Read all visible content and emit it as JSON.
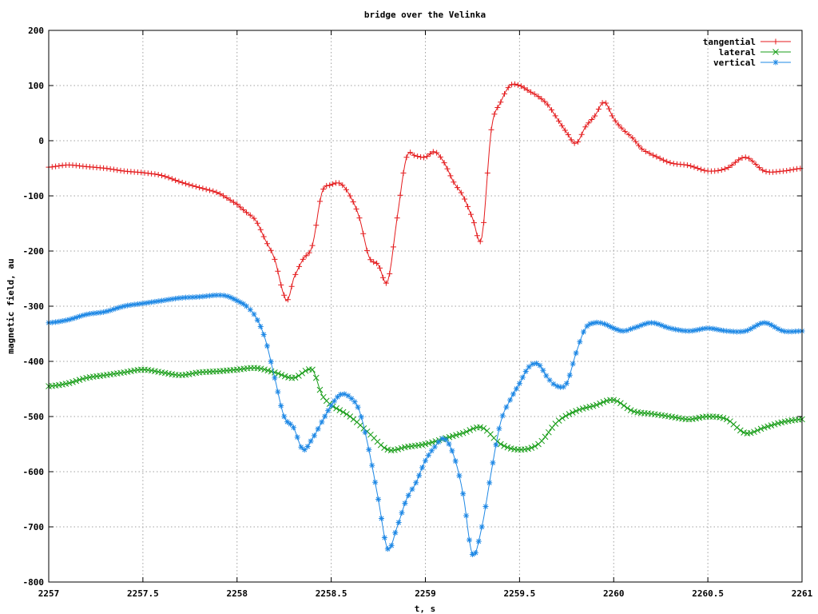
{
  "chart_data": {
    "type": "line",
    "title": "bridge over the Velinka",
    "xlabel": "t, s",
    "ylabel": "magnetic field, au",
    "xlim": [
      2257,
      2261
    ],
    "ylim": [
      -800,
      200
    ],
    "xticks": [
      2257,
      2257.5,
      2258,
      2258.5,
      2259,
      2259.5,
      2260,
      2260.5,
      2261
    ],
    "xtick_labels": [
      "2257",
      "2257.5",
      "2258",
      "2258.5",
      "2259",
      "2259.5",
      "2260",
      "2260.5",
      "2261"
    ],
    "yticks": [
      -800,
      -700,
      -600,
      -500,
      -400,
      -300,
      -200,
      -100,
      0,
      100,
      200
    ],
    "ytick_labels": [
      "-800",
      "-700",
      "-600",
      "-500",
      "-400",
      "-300",
      "-200",
      "-100",
      "0",
      "100",
      "200"
    ],
    "grid": true,
    "legend_position": "top-right",
    "series": [
      {
        "name": "tangential",
        "color": "#e41a1c",
        "marker": "plus",
        "x": [
          2257.0,
          2257.1,
          2257.2,
          2257.3,
          2257.4,
          2257.5,
          2257.6,
          2257.7,
          2257.8,
          2257.9,
          2258.0,
          2258.05,
          2258.1,
          2258.15,
          2258.2,
          2258.25,
          2258.27,
          2258.3,
          2258.35,
          2258.4,
          2258.45,
          2258.5,
          2258.55,
          2258.6,
          2258.65,
          2258.7,
          2258.75,
          2258.8,
          2258.85,
          2258.9,
          2258.95,
          2259.0,
          2259.05,
          2259.1,
          2259.15,
          2259.2,
          2259.25,
          2259.3,
          2259.35,
          2259.4,
          2259.45,
          2259.5,
          2259.55,
          2259.6,
          2259.65,
          2259.7,
          2259.75,
          2259.8,
          2259.85,
          2259.9,
          2259.95,
          2260.0,
          2260.05,
          2260.1,
          2260.15,
          2260.2,
          2260.3,
          2260.4,
          2260.5,
          2260.6,
          2260.7,
          2260.8,
          2260.9,
          2261.0
        ],
        "y": [
          -48,
          -44,
          -47,
          -50,
          -55,
          -58,
          -63,
          -75,
          -85,
          -95,
          -115,
          -130,
          -145,
          -180,
          -215,
          -280,
          -288,
          -250,
          -215,
          -190,
          -95,
          -80,
          -78,
          -100,
          -140,
          -210,
          -225,
          -255,
          -140,
          -30,
          -28,
          -30,
          -20,
          -40,
          -75,
          -100,
          -140,
          -175,
          20,
          70,
          100,
          100,
          90,
          80,
          65,
          40,
          15,
          -5,
          25,
          45,
          70,
          40,
          20,
          5,
          -15,
          -25,
          -40,
          -45,
          -55,
          -50,
          -30,
          -55,
          -55,
          -50
        ]
      },
      {
        "name": "lateral",
        "color": "#1a9e1a",
        "marker": "cross",
        "x": [
          2257.0,
          2257.1,
          2257.2,
          2257.3,
          2257.4,
          2257.5,
          2257.6,
          2257.7,
          2257.8,
          2257.9,
          2258.0,
          2258.1,
          2258.2,
          2258.3,
          2258.4,
          2258.45,
          2258.5,
          2258.6,
          2258.7,
          2258.8,
          2258.9,
          2259.0,
          2259.1,
          2259.2,
          2259.3,
          2259.4,
          2259.5,
          2259.6,
          2259.7,
          2259.8,
          2259.9,
          2260.0,
          2260.1,
          2260.2,
          2260.3,
          2260.4,
          2260.5,
          2260.6,
          2260.7,
          2260.8,
          2260.9,
          2261.0
        ],
        "y": [
          -445,
          -440,
          -430,
          -425,
          -420,
          -415,
          -420,
          -425,
          -420,
          -418,
          -415,
          -412,
          -420,
          -430,
          -415,
          -460,
          -480,
          -500,
          -530,
          -560,
          -555,
          -550,
          -540,
          -530,
          -520,
          -550,
          -560,
          -550,
          -510,
          -490,
          -480,
          -470,
          -490,
          -495,
          -500,
          -505,
          -500,
          -505,
          -530,
          -520,
          -510,
          -505
        ]
      },
      {
        "name": "vertical",
        "color": "#1e88e5",
        "marker": "star",
        "x": [
          2257.0,
          2257.1,
          2257.2,
          2257.3,
          2257.4,
          2257.5,
          2257.6,
          2257.7,
          2257.8,
          2257.9,
          2257.95,
          2258.0,
          2258.05,
          2258.1,
          2258.15,
          2258.2,
          2258.25,
          2258.3,
          2258.35,
          2258.4,
          2258.45,
          2258.5,
          2258.55,
          2258.6,
          2258.65,
          2258.7,
          2258.75,
          2258.8,
          2258.85,
          2258.9,
          2258.95,
          2259.0,
          2259.05,
          2259.1,
          2259.15,
          2259.2,
          2259.25,
          2259.3,
          2259.35,
          2259.4,
          2259.45,
          2259.5,
          2259.55,
          2259.6,
          2259.65,
          2259.7,
          2259.75,
          2259.8,
          2259.85,
          2259.9,
          2259.95,
          2260.0,
          2260.05,
          2260.1,
          2260.2,
          2260.3,
          2260.4,
          2260.5,
          2260.6,
          2260.7,
          2260.8,
          2260.9,
          2261.0
        ],
        "y": [
          -330,
          -325,
          -315,
          -310,
          -300,
          -295,
          -290,
          -285,
          -283,
          -280,
          -282,
          -290,
          -300,
          -320,
          -360,
          -430,
          -500,
          -520,
          -560,
          -540,
          -510,
          -480,
          -460,
          -465,
          -490,
          -560,
          -650,
          -740,
          -700,
          -650,
          -620,
          -580,
          -555,
          -540,
          -570,
          -640,
          -750,
          -700,
          -600,
          -510,
          -470,
          -440,
          -410,
          -405,
          -430,
          -445,
          -440,
          -385,
          -340,
          -330,
          -332,
          -340,
          -345,
          -340,
          -330,
          -340,
          -345,
          -340,
          -345,
          -345,
          -330,
          -345,
          -345
        ]
      }
    ]
  }
}
